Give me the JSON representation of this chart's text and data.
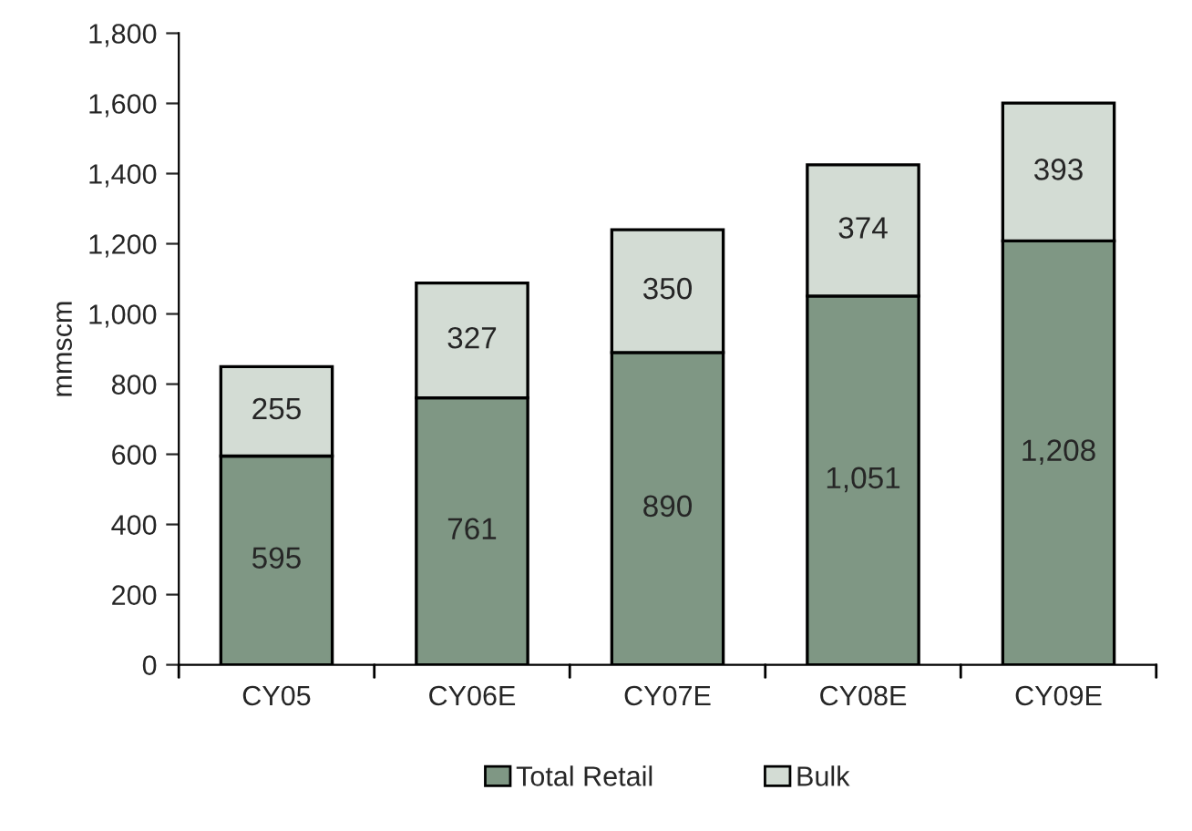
{
  "chart_data": {
    "type": "bar",
    "stacked": true,
    "ylabel": "mmscm",
    "categories": [
      "CY05",
      "CY06E",
      "CY07E",
      "CY08E",
      "CY09E"
    ],
    "series": [
      {
        "name": "Total Retail",
        "color": "#7f9784",
        "values": [
          595,
          761,
          890,
          1051,
          1208
        ],
        "value_labels": [
          "595",
          "761",
          "890",
          "1,051",
          "1,208"
        ]
      },
      {
        "name": "Bulk",
        "color": "#d3dcd4",
        "values": [
          255,
          327,
          350,
          374,
          393
        ],
        "value_labels": [
          "255",
          "327",
          "350",
          "374",
          "393"
        ]
      }
    ],
    "ylim": [
      0,
      1800
    ],
    "yticks": [
      0,
      200,
      400,
      600,
      800,
      {
        "value": 1000,
        "label": "1,000"
      },
      {
        "value": 1200,
        "label": "1,200"
      },
      {
        "value": 1400,
        "label": "1,400"
      },
      {
        "value": 1600,
        "label": "1,600"
      },
      {
        "value": 1800,
        "label": "1,800"
      }
    ],
    "grid": false,
    "legend": "bottom"
  }
}
